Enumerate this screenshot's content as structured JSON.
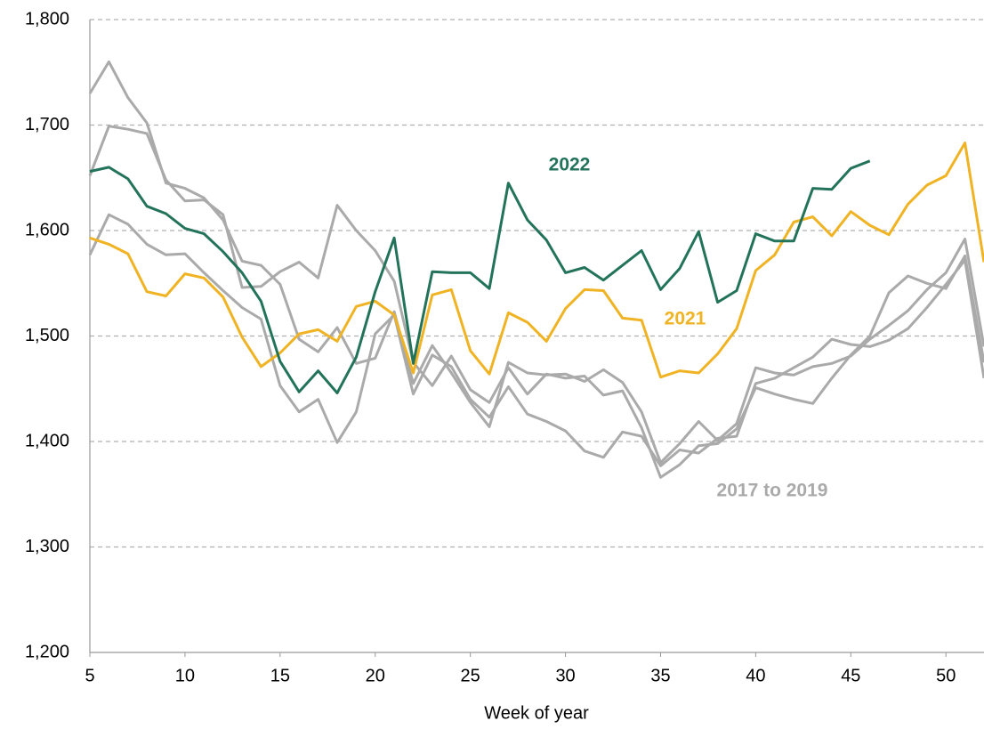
{
  "chart_data": {
    "type": "line",
    "x_label": "Week of year",
    "x": [
      5,
      6,
      7,
      8,
      9,
      10,
      11,
      12,
      13,
      14,
      15,
      16,
      17,
      18,
      19,
      20,
      21,
      22,
      23,
      24,
      25,
      26,
      27,
      28,
      29,
      30,
      31,
      32,
      33,
      34,
      35,
      36,
      37,
      38,
      39,
      40,
      41,
      42,
      43,
      44,
      45,
      46,
      47,
      48,
      49,
      50,
      51,
      52
    ],
    "series": [
      {
        "color": "#aaaaaa",
        "values": [
          1730,
          1760,
          1726,
          1702,
          1645,
          1640,
          1631,
          1610,
          1571,
          1567,
          1549,
          1497,
          1485,
          1508,
          1474,
          1479,
          1523,
          1455,
          1491,
          1465,
          1437,
          1414,
          1475,
          1465,
          1463,
          1464,
          1457,
          1468,
          1456,
          1428,
          1380,
          1398,
          1419,
          1401,
          1417,
          1470,
          1465,
          1463,
          1471,
          1474,
          1481,
          1497,
          1510,
          1524,
          1544,
          1560,
          1592,
          1490
        ]
      },
      {
        "color": "#aaaaaa",
        "values": [
          1652,
          1699,
          1696,
          1692,
          1648,
          1628,
          1629,
          1615,
          1546,
          1547,
          1561,
          1570,
          1555,
          1624,
          1600,
          1581,
          1552,
          1475,
          1453,
          1481,
          1449,
          1437,
          1470,
          1445,
          1464,
          1460,
          1462,
          1444,
          1448,
          1413,
          1366,
          1378,
          1396,
          1398,
          1412,
          1451,
          1445,
          1440,
          1436,
          1460,
          1482,
          1500,
          1541,
          1557,
          1550,
          1545,
          1576,
          1475
        ]
      },
      {
        "color": "#aaaaaa",
        "values": [
          1577,
          1615,
          1606,
          1587,
          1577,
          1578,
          1560,
          1543,
          1527,
          1516,
          1453,
          1428,
          1440,
          1399,
          1428,
          1502,
          1520,
          1445,
          1482,
          1471,
          1440,
          1423,
          1452,
          1426,
          1419,
          1410,
          1391,
          1385,
          1409,
          1405,
          1377,
          1392,
          1389,
          1403,
          1405,
          1455,
          1460,
          1470,
          1480,
          1497,
          1492,
          1490,
          1496,
          1507,
          1527,
          1549,
          1572,
          1460
        ]
      },
      {
        "name": "2021",
        "color": "#f0b323",
        "values": [
          1593,
          1587,
          1578,
          1542,
          1538,
          1559,
          1555,
          1537,
          1499,
          1471,
          1484,
          1502,
          1506,
          1495,
          1528,
          1533,
          1520,
          1465,
          1539,
          1544,
          1486,
          1464,
          1522,
          1513,
          1495,
          1526,
          1544,
          1543,
          1517,
          1515,
          1461,
          1467,
          1465,
          1483,
          1507,
          1562,
          1577,
          1608,
          1613,
          1595,
          1618,
          1605,
          1596,
          1625,
          1643,
          1652,
          1683,
          1570
        ]
      },
      {
        "name": "2022",
        "color": "#23735a",
        "values": [
          1656,
          1660,
          1649,
          1623,
          1616,
          1602,
          1597,
          1580,
          1560,
          1533,
          1476,
          1447,
          1467,
          1446,
          1480,
          1542,
          1593,
          1474,
          1561,
          1560,
          1560,
          1545,
          1645,
          1610,
          1591,
          1560,
          1565,
          1553,
          1567,
          1581,
          1544,
          1564,
          1599,
          1532,
          1543,
          1597,
          1590,
          1590,
          1640,
          1639,
          1659,
          1666,
          null,
          null,
          null,
          null,
          null,
          null
        ]
      }
    ],
    "annotations": [
      "2017 to 2019"
    ],
    "xlim": [
      5,
      52
    ],
    "xticks": [
      5,
      10,
      15,
      20,
      25,
      30,
      35,
      40,
      45,
      50
    ],
    "ylim": [
      1200,
      1800
    ],
    "yticks": [
      {
        "value": 1200,
        "label": "1,200"
      },
      {
        "value": 1300,
        "label": "1,300"
      },
      {
        "value": 1400,
        "label": "1,400"
      },
      {
        "value": 1500,
        "label": "1,500"
      },
      {
        "value": 1600,
        "label": "1,600"
      },
      {
        "value": 1700,
        "label": "1,700"
      },
      {
        "value": 1800,
        "label": "1,800"
      }
    ],
    "grid": true
  }
}
